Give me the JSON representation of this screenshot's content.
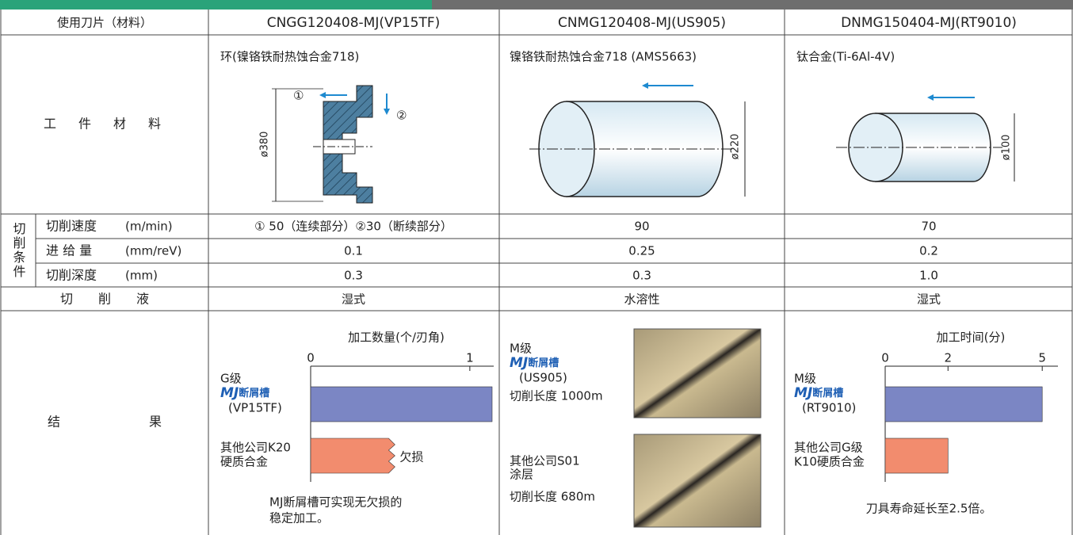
{
  "header": {
    "columns": [
      "使用刀片（材料）",
      "CNGG120408-MJ(VP15TF)",
      "CNMG120408-MJ(US905)",
      "DNMG150404-MJ(RT9010)"
    ]
  },
  "workpiece": {
    "label": "工　件　材　料",
    "materials": [
      "环(镍铬铁耐热蚀合金718)",
      "镍铬铁耐热蚀合金718 (AMS5663)",
      "钛合金(Ti-6Al-4V)"
    ],
    "diagram_labels": {
      "step1": "①",
      "step2": "②",
      "d1": "ø380",
      "d2": "ø220",
      "d3": "ø100"
    }
  },
  "conditions": {
    "group": "切削条件",
    "rows": [
      {
        "label": "切削速度",
        "unit": "(m/min)",
        "values": [
          "① 50（连续部分）②30（断续部分）",
          "90",
          "70"
        ]
      },
      {
        "label": "进 给 量",
        "unit": "(mm/reV)",
        "values": [
          "0.1",
          "0.25",
          "0.2"
        ]
      },
      {
        "label": "切削深度",
        "unit": "(mm)",
        "values": [
          "0.3",
          "0.3",
          "1.0"
        ]
      }
    ]
  },
  "coolant": {
    "label": "切　　削　　液",
    "values": [
      "湿式",
      "水溶性",
      "湿式"
    ]
  },
  "results": {
    "label": "结　　　　　　　果",
    "chart1": {
      "type": "bar",
      "title": "加工数量(个/刃角)",
      "xlim": [
        0,
        1.15
      ],
      "xticks": [
        0,
        1
      ],
      "series": [
        {
          "grade": "G级",
          "brand": "MJ",
          "groove": "断屑槽",
          "insert": "(VP15TF)",
          "color": "#7b86c4",
          "value": 1.14
        },
        {
          "lines": [
            "其他公司K20",
            "硬质合金"
          ],
          "color": "#f28c6e",
          "value": 0.49,
          "annotation": "欠损"
        }
      ],
      "note": [
        "MJ断屑槽可实现无欠损的",
        "稳定加工。"
      ]
    },
    "photos": {
      "grade": "M级",
      "brand": "MJ",
      "groove": "断屑槽",
      "insert": "(US905)",
      "length1": "切削长度 1000m",
      "other": [
        "其他公司S01",
        "涂层"
      ],
      "length2": "切削长度 680m"
    },
    "chart3": {
      "type": "bar",
      "title": "加工时间(分)",
      "xlim": [
        0,
        5.5
      ],
      "xticks": [
        0,
        2,
        5
      ],
      "series": [
        {
          "grade": "M级",
          "brand": "MJ",
          "groove": "断屑槽",
          "insert": "(RT9010)",
          "color": "#7b86c4",
          "value": 5
        },
        {
          "lines": [
            "其他公司G级",
            "K10硬质合金"
          ],
          "color": "#f28c6e",
          "value": 2
        }
      ],
      "note": "刀具寿命延长至2.5倍。"
    }
  }
}
